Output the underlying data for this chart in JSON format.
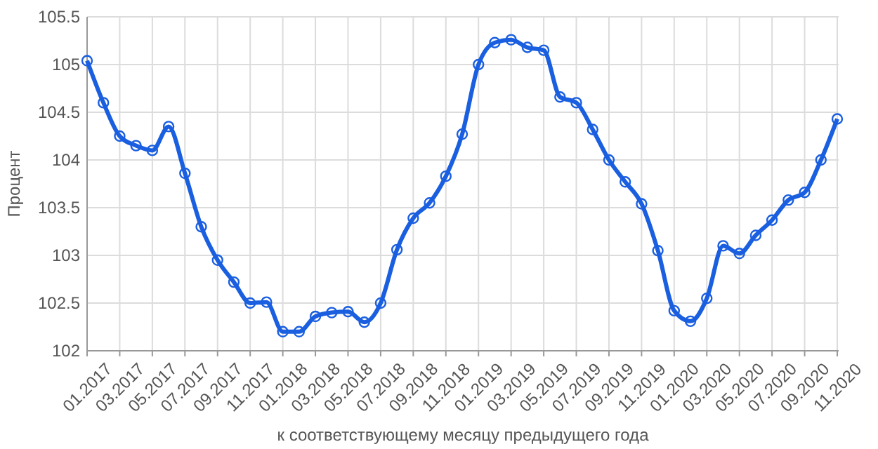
{
  "chart_data": {
    "type": "line",
    "xlabel": "к соответствующему месяцу предыдущего года",
    "ylabel": "Процент",
    "categories": [
      "01.2017",
      null,
      "03.2017",
      null,
      "05.2017",
      null,
      "07.2017",
      null,
      "09.2017",
      null,
      "11.2017",
      null,
      "01.2018",
      null,
      "03.2018",
      null,
      "05.2018",
      null,
      "07.2018",
      null,
      "09.2018",
      null,
      "11.2018",
      null,
      "01.2019",
      null,
      "03.2019",
      null,
      "05.2019",
      null,
      "07.2019",
      null,
      "09.2019",
      null,
      "11.2019",
      null,
      "01.2020",
      null,
      "03.2020",
      null,
      "05.2020",
      null,
      "07.2020",
      null,
      "09.2020",
      null,
      "11.2020"
    ],
    "series": [
      {
        "color": "#1a5fe0",
        "values": [
          105.04,
          104.6,
          104.25,
          104.15,
          104.1,
          104.35,
          103.86,
          103.3,
          102.95,
          102.72,
          102.5,
          102.51,
          102.2,
          102.2,
          102.36,
          102.4,
          102.41,
          102.3,
          102.5,
          103.06,
          103.39,
          103.55,
          103.83,
          104.27,
          105.0,
          105.23,
          105.26,
          105.18,
          105.15,
          104.66,
          104.6,
          104.32,
          104.0,
          103.77,
          103.54,
          103.05,
          102.42,
          102.31,
          102.55,
          103.1,
          103.02,
          103.21,
          103.37,
          103.58,
          103.66,
          104.0,
          104.43
        ]
      }
    ],
    "ylim": [
      102,
      105.5
    ],
    "yticks": [
      102,
      102.5,
      103,
      103.5,
      104,
      104.5,
      105,
      105.5
    ],
    "grid": true,
    "marker": "circle",
    "line_style": "solid"
  }
}
